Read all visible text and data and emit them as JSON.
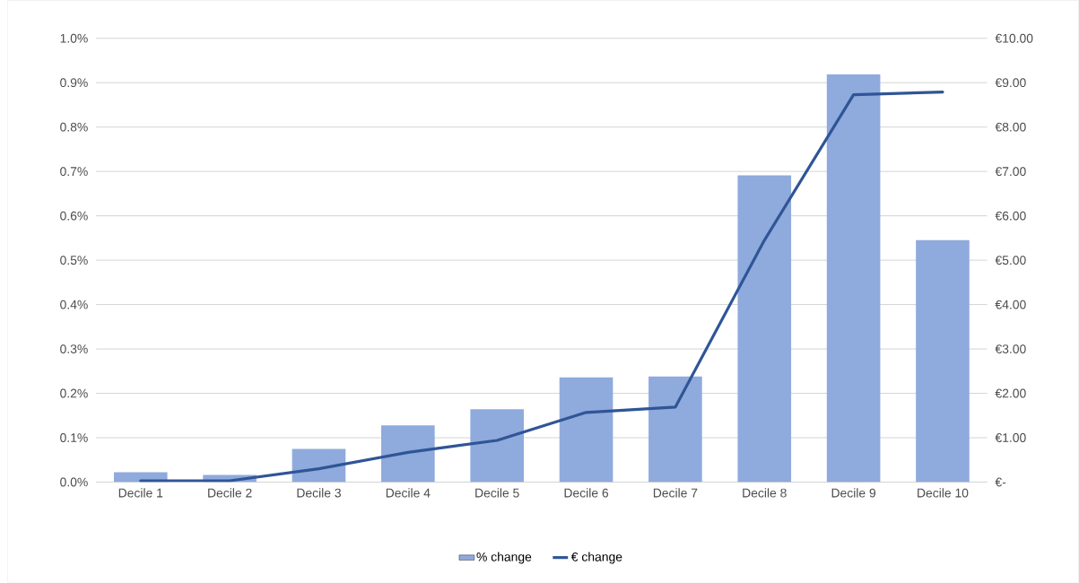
{
  "chart_data": {
    "type": "bar",
    "categories": [
      "Decile 1",
      "Decile 2",
      "Decile 3",
      "Decile 4",
      "Decile 5",
      "Decile 6",
      "Decile 7",
      "Decile 8",
      "Decile 9",
      "Decile 10"
    ],
    "series": [
      {
        "name": "% change",
        "color": "#8faadc",
        "values": [
          0.022,
          0.016,
          0.075,
          0.128,
          0.164,
          0.236,
          0.238,
          0.691,
          0.919,
          0.545
        ]
      },
      {
        "name": "€ change",
        "type": "line",
        "axis": "y2",
        "color": "#2f5597",
        "values": [
          0.03,
          0.03,
          0.3,
          0.67,
          0.94,
          1.57,
          1.69,
          5.45,
          8.73,
          8.79
        ]
      }
    ],
    "ylim": [
      0,
      1.0
    ],
    "yticks": [
      {
        "value": 0,
        "label": "0.0%"
      },
      {
        "value": 0.1,
        "label": "0.1%"
      },
      {
        "value": 0.2,
        "label": "0.2%"
      },
      {
        "value": 0.3,
        "label": "0.3%"
      },
      {
        "value": 0.4,
        "label": "0.4%"
      },
      {
        "value": 0.5,
        "label": "0.5%"
      },
      {
        "value": 0.6,
        "label": "0.6%"
      },
      {
        "value": 0.7,
        "label": "0.7%"
      },
      {
        "value": 0.8,
        "label": "0.8%"
      },
      {
        "value": 0.9,
        "label": "0.9%"
      },
      {
        "value": 1.0,
        "label": "1.0%"
      }
    ],
    "y2lim": [
      0,
      10
    ],
    "y2ticks": [
      {
        "value": 0,
        "label": "€-"
      },
      {
        "value": 1,
        "label": "€1.00"
      },
      {
        "value": 2,
        "label": "€2.00"
      },
      {
        "value": 3,
        "label": "€3.00"
      },
      {
        "value": 4,
        "label": "€4.00"
      },
      {
        "value": 5,
        "label": "€5.00"
      },
      {
        "value": 6,
        "label": "€6.00"
      },
      {
        "value": 7,
        "label": "€7.00"
      },
      {
        "value": 8,
        "label": "€8.00"
      },
      {
        "value": 9,
        "label": "€9.00"
      },
      {
        "value": 10,
        "label": "€10.00"
      }
    ],
    "grid": "y",
    "legend": "bottom"
  }
}
